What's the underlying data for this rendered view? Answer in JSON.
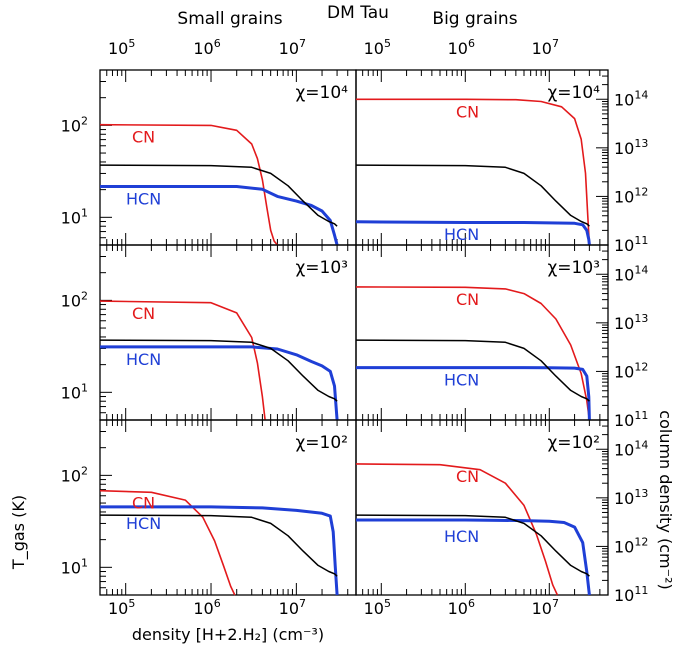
{
  "chart_data": {
    "type": "line",
    "title": "DM Tau",
    "column_titles": [
      "Small grains",
      "Big grains"
    ],
    "xlabel": "density [H+2.H₂] (cm⁻³)",
    "ylabel_left": "T_gas (K)",
    "ylabel_right": "column density (cm⁻²)",
    "x_scale": "log",
    "xlim": [
      50000,
      50000000
    ],
    "x_tick_labels": [
      "10⁵",
      "10⁶",
      "10⁷"
    ],
    "y_left_scale": "log",
    "y_left_ylim": [
      5,
      400
    ],
    "y_left_tick_labels": [
      "10¹",
      "10²"
    ],
    "y_right_scale": "log",
    "y_right_ylim": [
      100000000000,
      400000000000000
    ],
    "y_right_tick_labels": [
      "10¹¹",
      "10¹²",
      "10¹³",
      "10¹⁴"
    ],
    "series_colors": {
      "CN": "#e31a1c",
      "HCN": "#1f3fd6",
      "T_gas": "#000000"
    },
    "panels": [
      {
        "row": 0,
        "col": 0,
        "annotation": "χ=10⁴",
        "labels": {
          "CN": "CN",
          "HCN": "HCN"
        },
        "series": [
          {
            "name": "CN",
            "axis": "right",
            "x": [
              50000,
              1000000,
              2000000,
              3000000,
              3500000,
              4000000,
              4500000,
              5000000,
              5500000,
              6000000
            ],
            "y": [
              30000000000000.0,
              29000000000000.0,
              23000000000000.0,
              12000000000000.0,
              6000000000000.0,
              2200000000000.0,
              600000000000.0,
              200000000000.0,
              120000000000.0,
              100000000000.0
            ]
          },
          {
            "name": "HCN",
            "axis": "right",
            "x": [
              50000,
              2000000,
              4000000,
              6000000,
              10000000,
              15000000,
              20000000,
              25000000,
              28000000,
              30000000
            ],
            "y": [
              1600000000000.0,
              1600000000000.0,
              1400000000000.0,
              1000000000000.0,
              800000000000.0,
              650000000000.0,
              500000000000.0,
              320000000000.0,
              160000000000.0,
              100000000000.0
            ]
          },
          {
            "name": "T_gas",
            "axis": "left",
            "x": [
              50000,
              1000000,
              3000000,
              5000000,
              8000000,
              12000000,
              18000000,
              24000000,
              28000000,
              30000000
            ],
            "y": [
              37,
              36.5,
              35,
              30,
              22,
              15,
              10.5,
              9,
              8.5,
              8
            ]
          }
        ]
      },
      {
        "row": 0,
        "col": 1,
        "annotation": "χ=10⁴",
        "labels": {
          "CN": "CN",
          "HCN": "HCN"
        },
        "series": [
          {
            "name": "CN",
            "axis": "right",
            "x": [
              50000,
              1000000,
              4000000,
              8000000,
              14000000,
              20000000,
              24000000,
              27000000,
              28500000,
              30000000
            ],
            "y": [
              100000000000000.0,
              100000000000000.0,
              98000000000000.0,
              90000000000000.0,
              70000000000000.0,
              40000000000000.0,
              15000000000000.0,
              3000000000000.0,
              500000000000.0,
              100000000000.0
            ]
          },
          {
            "name": "HCN",
            "axis": "right",
            "x": [
              50000,
              1000000,
              5000000,
              10000000,
              20000000,
              25000000,
              28000000,
              29500000,
              30000000
            ],
            "y": [
              300000000000.0,
              290000000000.0,
              290000000000.0,
              285000000000.0,
              280000000000.0,
              260000000000.0,
              200000000000.0,
              130000000000.0,
              100000000000.0
            ]
          },
          {
            "name": "T_gas",
            "axis": "left",
            "x": [
              50000,
              1000000,
              3000000,
              5000000,
              8000000,
              12000000,
              18000000,
              24000000,
              28000000,
              30000000
            ],
            "y": [
              37,
              36.5,
              35,
              30,
              22,
              15,
              10.5,
              9,
              8.5,
              8
            ]
          }
        ]
      },
      {
        "row": 1,
        "col": 0,
        "annotation": "χ=10³",
        "labels": {
          "CN": "CN",
          "HCN": "HCN"
        },
        "series": [
          {
            "name": "CN",
            "axis": "right",
            "x": [
              50000,
              1000000,
              2000000,
              3000000,
              3500000,
              4000000,
              4300000
            ],
            "y": [
              28000000000000.0,
              26000000000000.0,
              16000000000000.0,
              5000000000000.0,
              1500000000000.0,
              300000000000.0,
              100000000000.0
            ]
          },
          {
            "name": "HCN",
            "axis": "right",
            "x": [
              50000,
              3000000,
              6000000,
              10000000,
              15000000,
              20000000,
              25000000,
              28000000,
              30000000
            ],
            "y": [
              3200000000000.0,
              3200000000000.0,
              2900000000000.0,
              2200000000000.0,
              1600000000000.0,
              1300000000000.0,
              1000000000000.0,
              500000000000.0,
              100000000000.0
            ]
          },
          {
            "name": "T_gas",
            "axis": "left",
            "x": [
              50000,
              1000000,
              3000000,
              5000000,
              8000000,
              12000000,
              18000000,
              24000000,
              28000000,
              30000000
            ],
            "y": [
              37,
              36.5,
              35,
              30,
              22,
              15,
              10.5,
              9,
              8.5,
              8
            ]
          }
        ]
      },
      {
        "row": 1,
        "col": 1,
        "annotation": "χ=10³",
        "labels": {
          "CN": "CN",
          "HCN": "HCN"
        },
        "series": [
          {
            "name": "CN",
            "axis": "right",
            "x": [
              50000,
              1000000,
              3000000,
              5000000,
              8000000,
              12000000,
              18000000,
              24000000,
              28000000,
              30000000
            ],
            "y": [
              55000000000000.0,
              54000000000000.0,
              50000000000000.0,
              40000000000000.0,
              25000000000000.0,
              12000000000000.0,
              3500000000000.0,
              900000000000.0,
              250000000000.0,
              100000000000.0
            ]
          },
          {
            "name": "HCN",
            "axis": "right",
            "x": [
              50000,
              1000000,
              5000000,
              10000000,
              20000000,
              25000000,
              28000000,
              29500000,
              30000000
            ],
            "y": [
              1200000000000.0,
              1200000000000.0,
              1200000000000.0,
              1190000000000.0,
              1170000000000.0,
              1100000000000.0,
              800000000000.0,
              300000000000.0,
              100000000000.0
            ]
          },
          {
            "name": "T_gas",
            "axis": "left",
            "x": [
              50000,
              1000000,
              3000000,
              5000000,
              8000000,
              12000000,
              18000000,
              24000000,
              28000000,
              30000000
            ],
            "y": [
              37,
              36.5,
              35,
              30,
              22,
              15,
              10.5,
              9,
              8.5,
              8
            ]
          }
        ]
      },
      {
        "row": 2,
        "col": 0,
        "annotation": "χ=10²",
        "labels": {
          "CN": "CN",
          "HCN": "HCN"
        },
        "series": [
          {
            "name": "CN",
            "axis": "right",
            "x": [
              50000,
              200000,
              500000,
              800000,
              1100000,
              1400000,
              1700000,
              1900000
            ],
            "y": [
              14000000000000.0,
              13000000000000.0,
              9000000000000.0,
              4000000000000.0,
              1300000000000.0,
              400000000000.0,
              150000000000.0,
              100000000000.0
            ]
          },
          {
            "name": "HCN",
            "axis": "right",
            "x": [
              50000,
              1000000,
              4000000,
              10000000,
              20000000,
              25000000,
              27000000,
              28500000,
              30000000
            ],
            "y": [
              6500000000000.0,
              6500000000000.0,
              6200000000000.0,
              5500000000000.0,
              4800000000000.0,
              4200000000000.0,
              2000000000000.0,
              400000000000.0,
              100000000000.0
            ]
          },
          {
            "name": "T_gas",
            "axis": "left",
            "x": [
              50000,
              1000000,
              3000000,
              5000000,
              8000000,
              12000000,
              18000000,
              24000000,
              28000000,
              30000000
            ],
            "y": [
              37,
              36.5,
              35,
              30,
              22,
              15,
              10.5,
              9,
              8.5,
              8
            ]
          }
        ]
      },
      {
        "row": 2,
        "col": 1,
        "annotation": "χ=10²",
        "labels": {
          "CN": "CN",
          "HCN": "HCN"
        },
        "series": [
          {
            "name": "CN",
            "axis": "right",
            "x": [
              50000,
              500000,
              1500000,
              3000000,
              5000000,
              7000000,
              9000000,
              11000000,
              12500000
            ],
            "y": [
              50000000000000.0,
              48000000000000.0,
              38000000000000.0,
              20000000000000.0,
              7000000000000.0,
              1800000000000.0,
              500000000000.0,
              160000000000.0,
              100000000000.0
            ]
          },
          {
            "name": "HCN",
            "axis": "right",
            "x": [
              50000,
              1000000,
              5000000,
              10000000,
              15000000,
              20000000,
              25000000,
              28000000,
              30000000
            ],
            "y": [
              3500000000000.0,
              3500000000000.0,
              3400000000000.0,
              3300000000000.0,
              3100000000000.0,
              2500000000000.0,
              1200000000000.0,
              300000000000.0,
              100000000000.0
            ]
          },
          {
            "name": "T_gas",
            "axis": "left",
            "x": [
              50000,
              1000000,
              3000000,
              5000000,
              8000000,
              12000000,
              18000000,
              24000000,
              28000000,
              30000000
            ],
            "y": [
              37,
              36.5,
              35,
              30,
              22,
              15,
              10.5,
              9,
              8.5,
              8
            ]
          }
        ]
      }
    ]
  }
}
